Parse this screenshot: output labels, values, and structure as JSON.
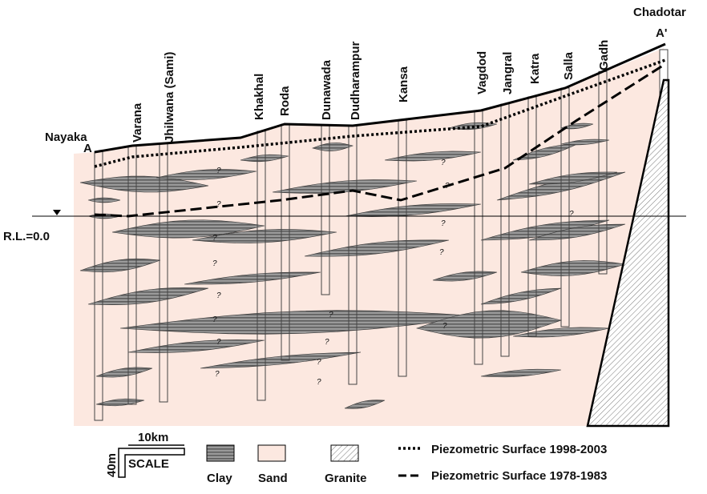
{
  "section": {
    "start_name": "Nayaka",
    "start_label": "A",
    "end_name": "Chadotar",
    "end_label": "A'",
    "datum": "R.L.=0.0",
    "wells": [
      "Varana",
      "Jhilwana (Sami)",
      "Khakhal",
      "Roda",
      "Dunawada",
      "Dudharampur",
      "Kansa",
      "Vagdod",
      "Jangral",
      "Katra",
      "Salla",
      "Gadh"
    ],
    "unknown_marker": "?"
  },
  "legend": {
    "scale_horizontal": "10km",
    "scale_vertical": "40m",
    "scale_title": "SCALE",
    "clay": "Clay",
    "sand": "Sand",
    "granite": "Granite",
    "piezometric_recent": "Piezometric Surface 1998-2003",
    "piezometric_old": "Piezometric Surface 1978-1983"
  }
}
